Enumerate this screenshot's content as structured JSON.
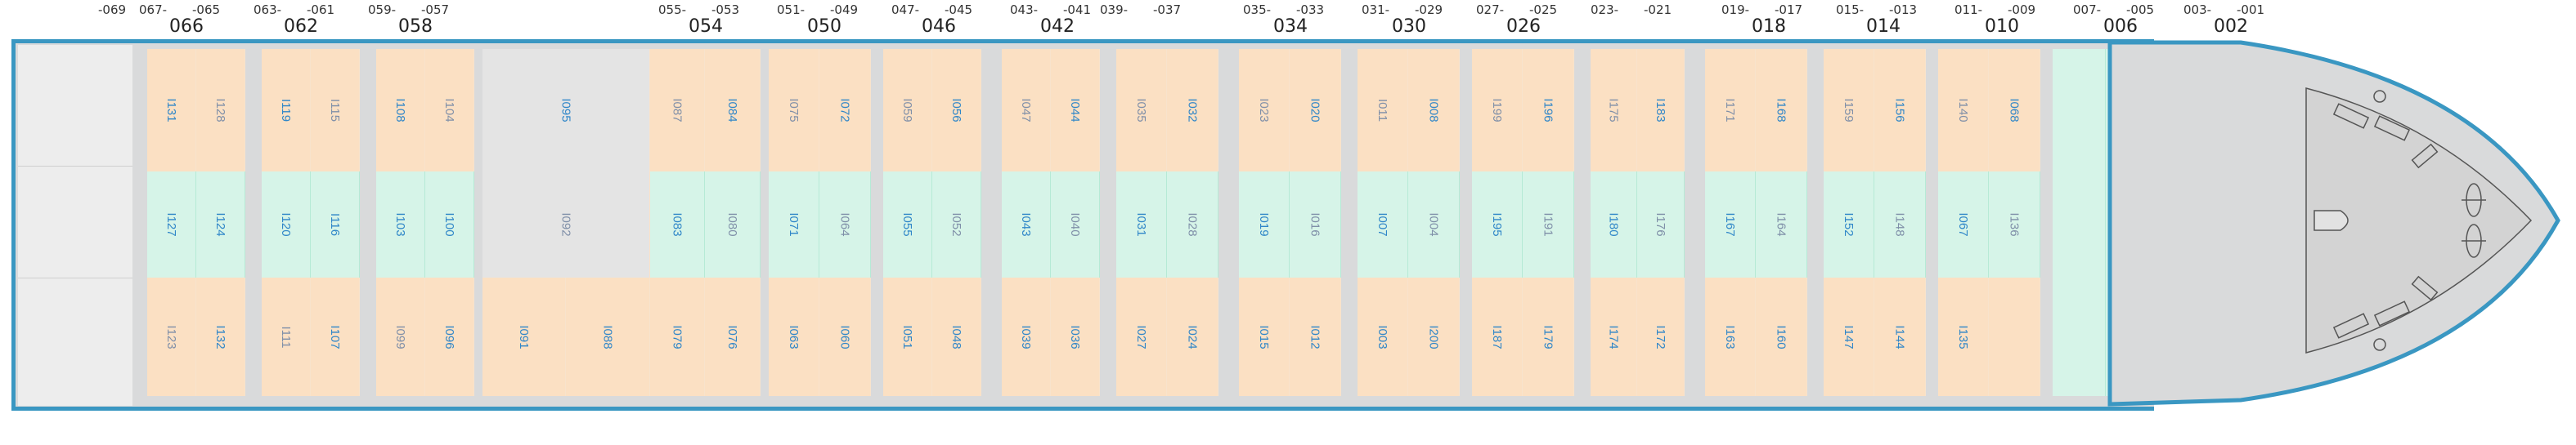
{
  "bay_headers": [
    {
      "small": [
        "-069"
      ],
      "big": ""
    },
    {
      "small": [
        "067-",
        "-065"
      ],
      "big": "066"
    },
    {
      "small": [
        "063-",
        "-061"
      ],
      "big": "062"
    },
    {
      "small": [
        "059-",
        "-057"
      ],
      "big": "058"
    },
    {
      "small": [
        "055-",
        "-053"
      ],
      "big": "054"
    },
    {
      "small": [
        "051-",
        "-049"
      ],
      "big": "050"
    },
    {
      "small": [
        "047-",
        "-045"
      ],
      "big": "046"
    },
    {
      "small": [
        "043-",
        "-041"
      ],
      "big": "042"
    },
    {
      "small": [
        "039-",
        "-037"
      ],
      "big": ""
    },
    {
      "small": [
        "035-",
        "-033"
      ],
      "big": "034"
    },
    {
      "small": [
        "031-",
        "-029"
      ],
      "big": "030"
    },
    {
      "small": [
        "027-",
        "-025"
      ],
      "big": "026"
    },
    {
      "small": [
        "023-",
        "-021"
      ],
      "big": ""
    },
    {
      "small": [
        "019-",
        "-017"
      ],
      "big": "018"
    },
    {
      "small": [
        "015-",
        "-013"
      ],
      "big": "014"
    },
    {
      "small": [
        "011-",
        "-009"
      ],
      "big": "010"
    },
    {
      "small": [
        "007-",
        "-005"
      ],
      "big": "006"
    },
    {
      "small": [
        "003-",
        "-001"
      ],
      "big": "002"
    }
  ],
  "hold_labels": [
    "I131",
    "I128",
    "I127",
    "I124",
    "I123",
    "I132",
    "I119",
    "I115",
    "I120",
    "I116",
    "I111",
    "I107",
    "I108",
    "I104",
    "I103",
    "I100",
    "I099",
    "I096",
    "I095",
    "I092",
    "I091",
    "I088",
    "I087",
    "I084",
    "I083",
    "I080",
    "I079",
    "I076",
    "I075",
    "I072",
    "I071",
    "I064",
    "I063",
    "I060",
    "I059",
    "I056",
    "I055",
    "I052",
    "I051",
    "I048",
    "I047",
    "I044",
    "I043",
    "I040",
    "I039",
    "I036",
    "I035",
    "I032",
    "I031",
    "I028",
    "I027",
    "I024",
    "I023",
    "I020",
    "I019",
    "I016",
    "I015",
    "I012",
    "I011",
    "I008",
    "I007",
    "I004",
    "I003",
    "I200",
    "I199",
    "I196",
    "I195",
    "I191",
    "I187",
    "I179",
    "I175",
    "I183",
    "I180",
    "I176",
    "I174",
    "I172",
    "I171",
    "I168",
    "I167",
    "I164",
    "I163",
    "I160",
    "I159",
    "I156",
    "I152",
    "I148",
    "I147",
    "I144",
    "I140",
    "I068",
    "I067",
    "I136",
    "I135"
  ],
  "colors": {
    "hull_outline": "#3a97c2",
    "free_slot": "#fbe0c3",
    "reefer_slot": "#d6f4e8",
    "deck": "#d9dadb",
    "label_active": "#2f86c8",
    "label_faint": "#7f8fa8"
  }
}
